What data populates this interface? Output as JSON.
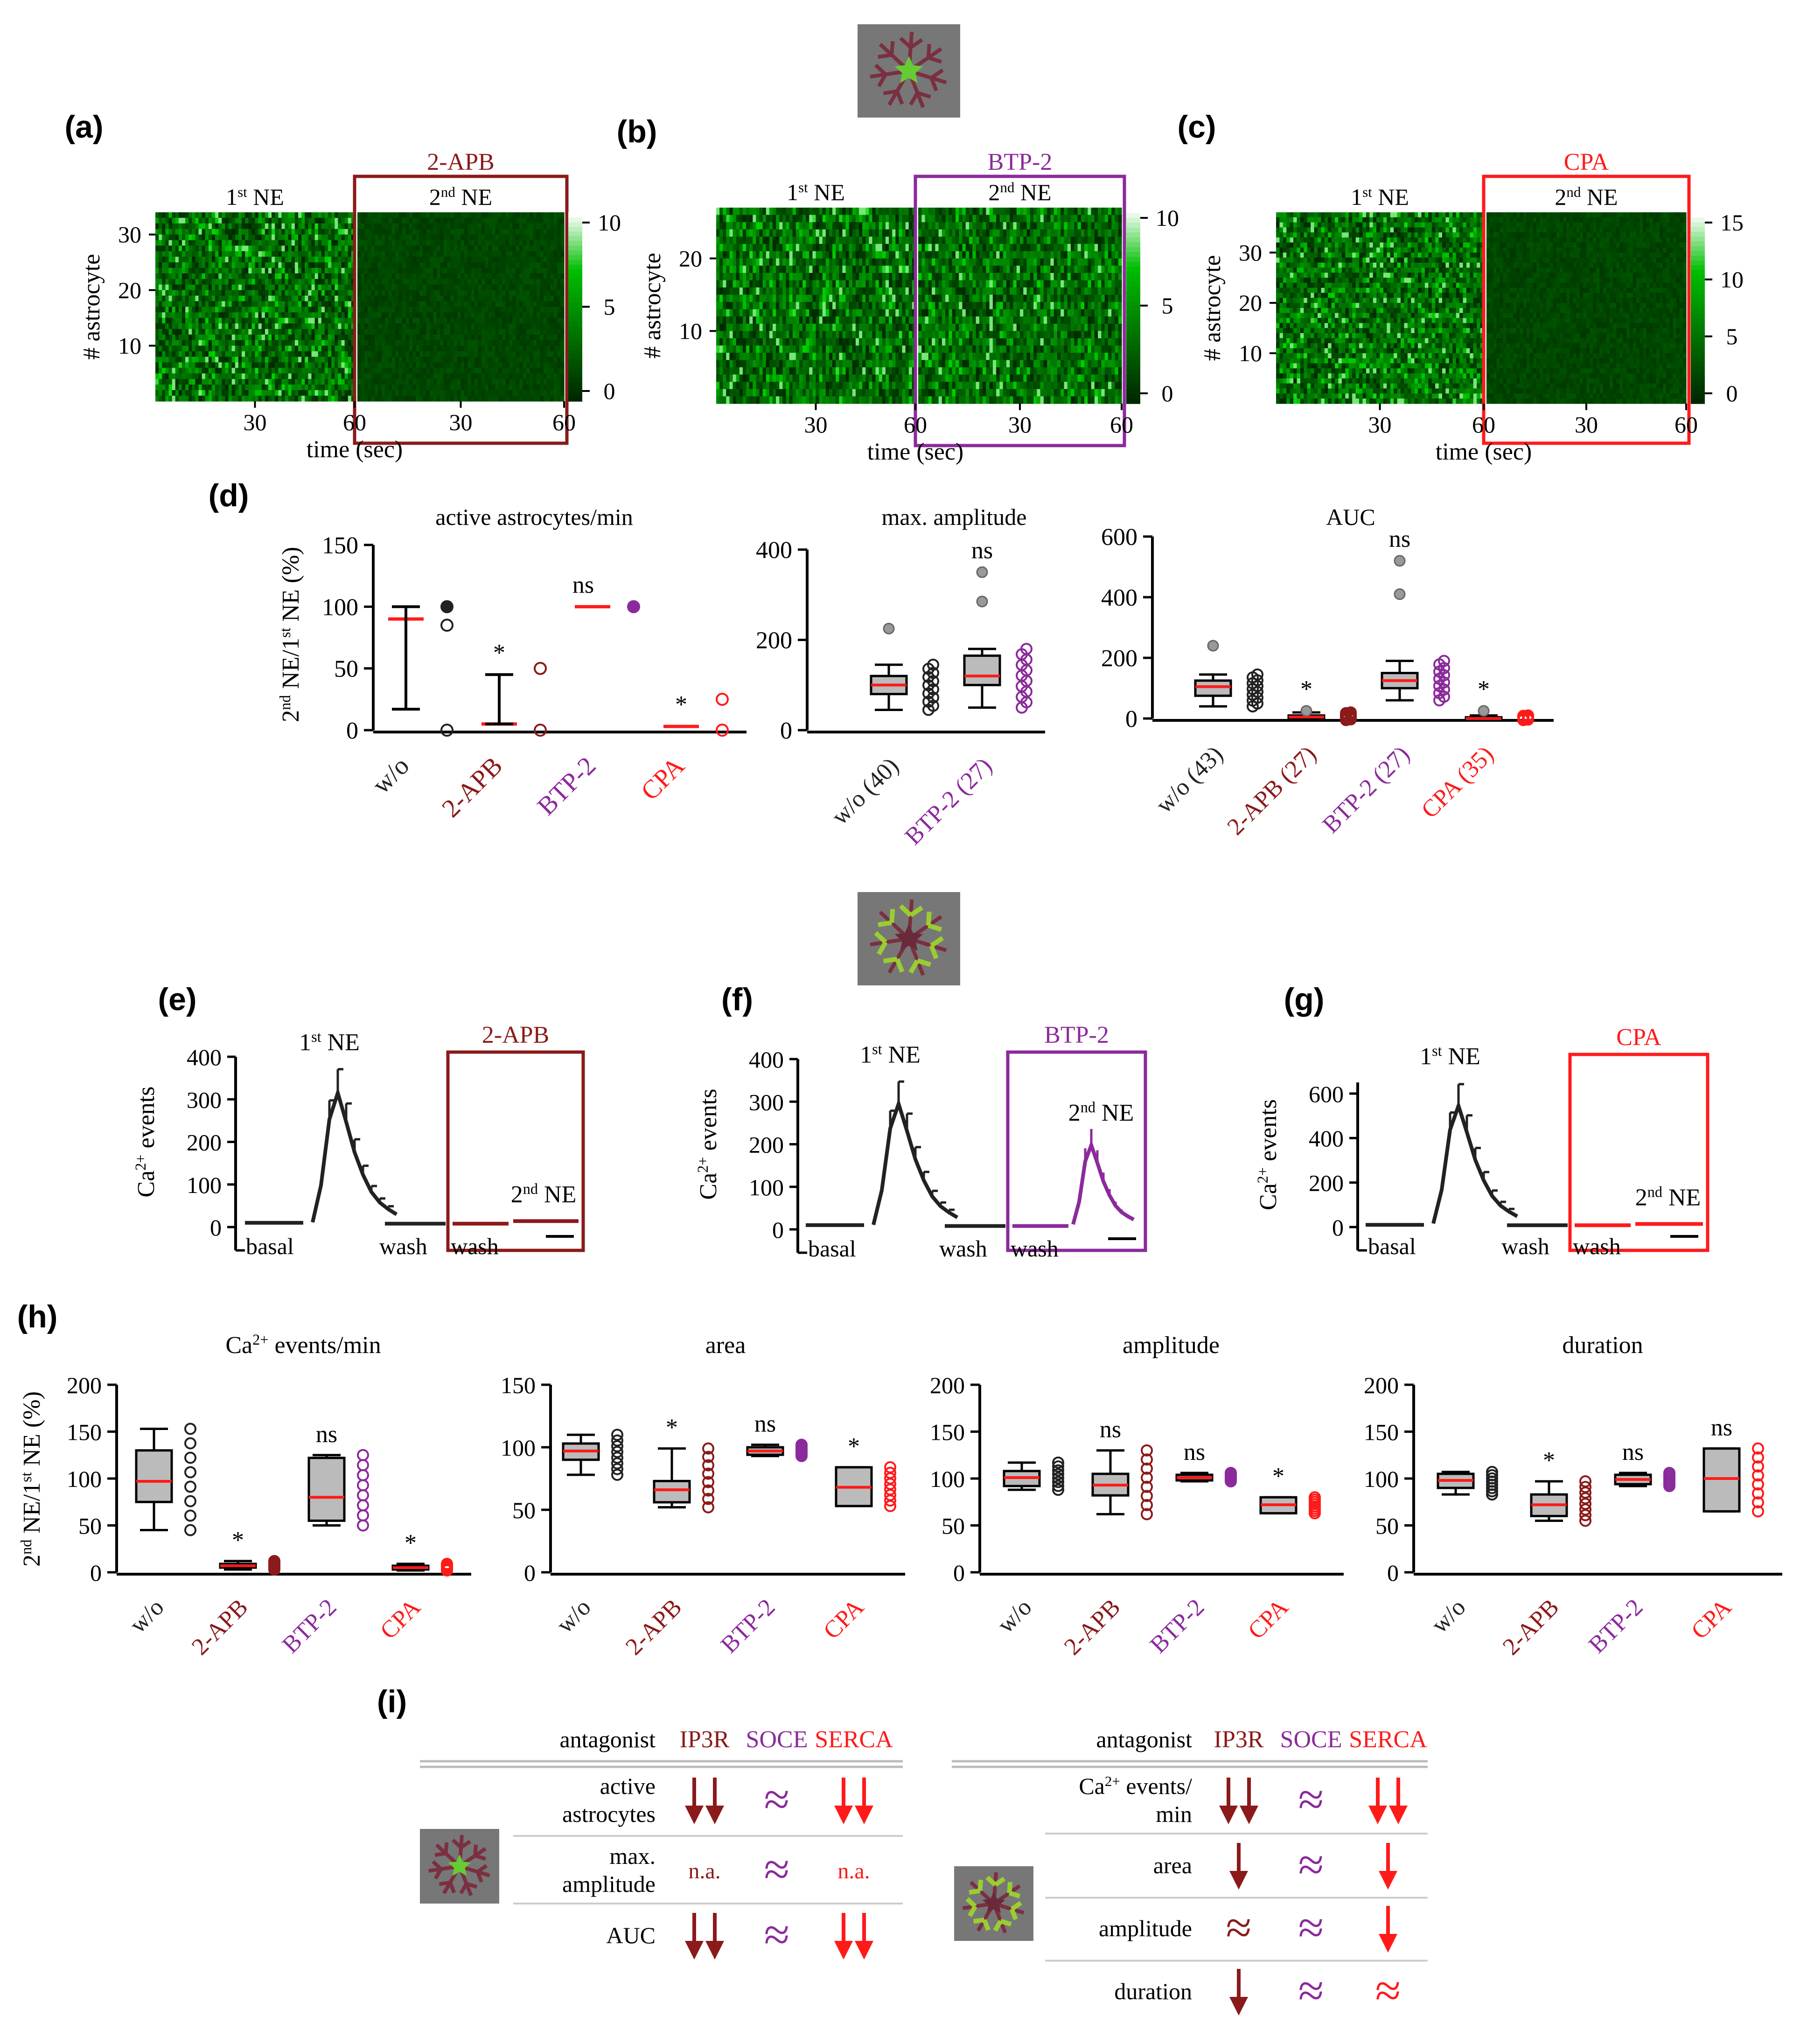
{
  "colors": {
    "w/o": "#222222",
    "2-APB": "#8b1a1a",
    "BTP-2": "#8b2a9b",
    "CPA": "#ff1a1a",
    "median": "#ff1a1a",
    "box": "#bbbbbb",
    "heat_low": "#003300",
    "heat_high": "#ffffff",
    "heat_mid": "#22cc22",
    "cell_bg": "#777777"
  },
  "icons": [
    "astrocyte-soma-icon",
    "astrocyte-processes-icon"
  ],
  "heatmaps": [
    {
      "letter": "(a)",
      "drug": "2-APB",
      "first": "1st NE",
      "second": "2nd NE",
      "ylabel": "# astrocyte",
      "xlabel": "time (sec)",
      "yticks": [
        "10",
        "20",
        "30"
      ],
      "xticks": [
        "30",
        "60",
        "30",
        "60"
      ],
      "cbar_ticks": [
        "0",
        "5",
        "10"
      ],
      "n_rows": 34,
      "second_active": false
    },
    {
      "letter": "(b)",
      "drug": "BTP-2",
      "first": "1st NE",
      "second": "2nd NE",
      "ylabel": "# astrocyte",
      "xlabel": "time (sec)",
      "yticks": [
        "10",
        "20"
      ],
      "xticks": [
        "30",
        "60",
        "30",
        "60"
      ],
      "cbar_ticks": [
        "0",
        "5",
        "10"
      ],
      "n_rows": 27,
      "second_active": true
    },
    {
      "letter": "(c)",
      "drug": "CPA",
      "first": "1st NE",
      "second": "2nd NE",
      "ylabel": "# astrocyte",
      "xlabel": "time (sec)",
      "yticks": [
        "10",
        "20",
        "30"
      ],
      "xticks": [
        "30",
        "60",
        "30",
        "60"
      ],
      "cbar_ticks": [
        "0",
        "5",
        "10",
        "15"
      ],
      "n_rows": 38,
      "second_active": false
    }
  ],
  "traces": [
    {
      "letter": "(e)",
      "drug": "2-APB",
      "first": "1st NE",
      "second": "2nd NE",
      "ylabel": "Ca2+ events",
      "yticks": [
        "0",
        "100",
        "200",
        "300",
        "400"
      ],
      "ymax": 400,
      "peak1": 310,
      "peak2": 8,
      "labels": [
        "basal",
        "wash",
        "wash"
      ]
    },
    {
      "letter": "(f)",
      "drug": "BTP-2",
      "first": "1st NE",
      "second": "2nd NE",
      "ylabel": "Ca2+ events",
      "yticks": [
        "0",
        "100",
        "200",
        "300",
        "400"
      ],
      "ymax": 400,
      "peak1": 290,
      "peak2": 190,
      "labels": [
        "basal",
        "wash",
        "wash"
      ]
    },
    {
      "letter": "(g)",
      "drug": "CPA",
      "first": "1st NE",
      "second": "2nd NE",
      "ylabel": "Ca2+ events",
      "yticks": [
        "0",
        "200",
        "400",
        "600"
      ],
      "ymax": 650,
      "peak1": 540,
      "peak2": 10,
      "labels": [
        "basal",
        "wash",
        "wash"
      ]
    }
  ],
  "panel_labels": {
    "d": "(d)",
    "h": "(h)",
    "i": "(i)"
  },
  "shared_ylabel": "2nd NE/1st NE (%)",
  "chart_data": [
    {
      "type": "dot",
      "panel": "(d)",
      "title": "active astrocytes/min",
      "ylabel": "2nd NE/1st NE (%)",
      "ylim": [
        0,
        150
      ],
      "yticks": [
        0,
        50,
        100,
        150
      ],
      "categories": [
        "w/o",
        "2-APB",
        "BTP-2",
        "CPA"
      ],
      "series": [
        {
          "name": "w/o",
          "median": 90,
          "whisker": [
            17,
            100
          ],
          "points": [
            100,
            85,
            0
          ],
          "sig": ""
        },
        {
          "name": "2-APB",
          "median": 5,
          "whisker": [
            5,
            45
          ],
          "points": [
            50,
            0
          ],
          "sig": "*"
        },
        {
          "name": "BTP-2",
          "median": 100,
          "whisker": null,
          "points": [
            100
          ],
          "sig": "ns"
        },
        {
          "name": "CPA",
          "median": 3,
          "whisker": null,
          "points": [
            25,
            0
          ],
          "sig": "*"
        }
      ]
    },
    {
      "type": "box",
      "panel": "(d)",
      "title": "max. amplitude",
      "ylim": [
        0,
        400
      ],
      "yticks": [
        0,
        200,
        400
      ],
      "categories": [
        "w/o (40)",
        "BTP-2 (27)"
      ],
      "series": [
        {
          "name": "w/o (40)",
          "box": [
            45,
            80,
            100,
            120,
            145
          ],
          "outliers": [
            225
          ],
          "sig": ""
        },
        {
          "name": "BTP-2 (27)",
          "box": [
            50,
            100,
            120,
            165,
            180
          ],
          "outliers": [
            285,
            350
          ],
          "sig": "ns"
        }
      ]
    },
    {
      "type": "box",
      "panel": "(d)",
      "title": "AUC",
      "ylim": [
        0,
        600
      ],
      "yticks": [
        0,
        200,
        400,
        600
      ],
      "categories": [
        "w/o (43)",
        "2-APB (27)",
        "BTP-2 (27)",
        "CPA (35)"
      ],
      "series": [
        {
          "name": "w/o (43)",
          "box": [
            40,
            75,
            105,
            125,
            145
          ],
          "outliers": [
            240
          ],
          "sig": ""
        },
        {
          "name": "2-APB (27)",
          "box": [
            -5,
            0,
            5,
            10,
            20
          ],
          "outliers": [
            25
          ],
          "sig": "*"
        },
        {
          "name": "BTP-2 (27)",
          "box": [
            60,
            100,
            125,
            150,
            190
          ],
          "outliers": [
            410,
            520
          ],
          "sig": "ns"
        },
        {
          "name": "CPA (35)",
          "box": [
            -5,
            -2,
            0,
            4,
            10
          ],
          "outliers": [
            25
          ],
          "sig": "*"
        }
      ]
    },
    {
      "type": "box",
      "panel": "(h)",
      "title": "Ca2+ events/min",
      "ylabel": "2nd NE/1st NE (%)",
      "ylim": [
        0,
        200
      ],
      "yticks": [
        0,
        50,
        100,
        150,
        200
      ],
      "categories": [
        "w/o",
        "2-APB",
        "BTP-2",
        "CPA"
      ],
      "series": [
        {
          "name": "w/o",
          "box": [
            45,
            75,
            97,
            130,
            153
          ],
          "sig": ""
        },
        {
          "name": "2-APB",
          "box": [
            3,
            5,
            7,
            9,
            12
          ],
          "sig": "*"
        },
        {
          "name": "BTP-2",
          "box": [
            50,
            55,
            80,
            122,
            125
          ],
          "sig": "ns"
        },
        {
          "name": "CPA",
          "box": [
            2,
            3,
            5,
            7,
            9
          ],
          "sig": "*"
        }
      ]
    },
    {
      "type": "box",
      "panel": "(h)",
      "title": "area",
      "ylim": [
        0,
        150
      ],
      "yticks": [
        0,
        50,
        100,
        150
      ],
      "categories": [
        "w/o",
        "2-APB",
        "BTP-2",
        "CPA"
      ],
      "series": [
        {
          "name": "w/o",
          "box": [
            78,
            90,
            97,
            103,
            110
          ],
          "sig": ""
        },
        {
          "name": "2-APB",
          "box": [
            52,
            56,
            66,
            73,
            99
          ],
          "sig": "*"
        },
        {
          "name": "BTP-2",
          "box": [
            93,
            94,
            97,
            100,
            102
          ],
          "sig": "ns"
        },
        {
          "name": "CPA",
          "box": [
            53,
            53,
            68,
            84,
            84
          ],
          "sig": "*"
        }
      ]
    },
    {
      "type": "box",
      "panel": "(h)",
      "title": "amplitude",
      "ylim": [
        0,
        200
      ],
      "yticks": [
        0,
        50,
        100,
        150,
        200
      ],
      "categories": [
        "w/o",
        "2-APB",
        "BTP-2",
        "CPA"
      ],
      "series": [
        {
          "name": "w/o",
          "box": [
            88,
            92,
            101,
            108,
            117
          ],
          "sig": ""
        },
        {
          "name": "2-APB",
          "box": [
            62,
            82,
            93,
            105,
            130
          ],
          "sig": "ns"
        },
        {
          "name": "BTP-2",
          "box": [
            97,
            98,
            101,
            104,
            106
          ],
          "sig": "ns"
        },
        {
          "name": "CPA",
          "box": [
            63,
            63,
            72,
            80,
            80
          ],
          "sig": "*"
        }
      ]
    },
    {
      "type": "box",
      "panel": "(h)",
      "title": "duration",
      "ylim": [
        0,
        200
      ],
      "yticks": [
        0,
        50,
        100,
        150,
        200
      ],
      "categories": [
        "w/o",
        "2-APB",
        "BTP-2",
        "CPA"
      ],
      "series": [
        {
          "name": "w/o",
          "box": [
            83,
            90,
            98,
            105,
            107
          ],
          "sig": ""
        },
        {
          "name": "2-APB",
          "box": [
            55,
            60,
            72,
            83,
            97
          ],
          "sig": "*"
        },
        {
          "name": "BTP-2",
          "box": [
            92,
            94,
            99,
            104,
            106
          ],
          "sig": "ns"
        },
        {
          "name": "CPA",
          "box": [
            65,
            65,
            100,
            132,
            132
          ],
          "sig": "ns"
        }
      ]
    }
  ],
  "summary_tables": [
    {
      "header": "antagonist",
      "cols": [
        "IP3R",
        "SOCE",
        "SERCA"
      ],
      "rows": [
        {
          "label": [
            "active",
            "astrocytes"
          ],
          "cells": [
            "dd",
            "approx",
            "dd"
          ]
        },
        {
          "label": [
            "max.",
            "amplitude"
          ],
          "cells": [
            "n.a.",
            "approx",
            "n.a."
          ]
        },
        {
          "label": [
            "AUC"
          ],
          "cells": [
            "dd",
            "approx",
            "dd"
          ]
        }
      ]
    },
    {
      "header": "antagonist",
      "cols": [
        "IP3R",
        "SOCE",
        "SERCA"
      ],
      "rows": [
        {
          "label": [
            "Ca2+ events/",
            "min"
          ],
          "cells": [
            "dd",
            "approx",
            "dd"
          ]
        },
        {
          "label": [
            "area"
          ],
          "cells": [
            "d",
            "approx",
            "d"
          ]
        },
        {
          "label": [
            "amplitude"
          ],
          "cells": [
            "approx",
            "approx",
            "d"
          ]
        },
        {
          "label": [
            "duration"
          ],
          "cells": [
            "d",
            "approx",
            "approx"
          ]
        }
      ]
    }
  ]
}
